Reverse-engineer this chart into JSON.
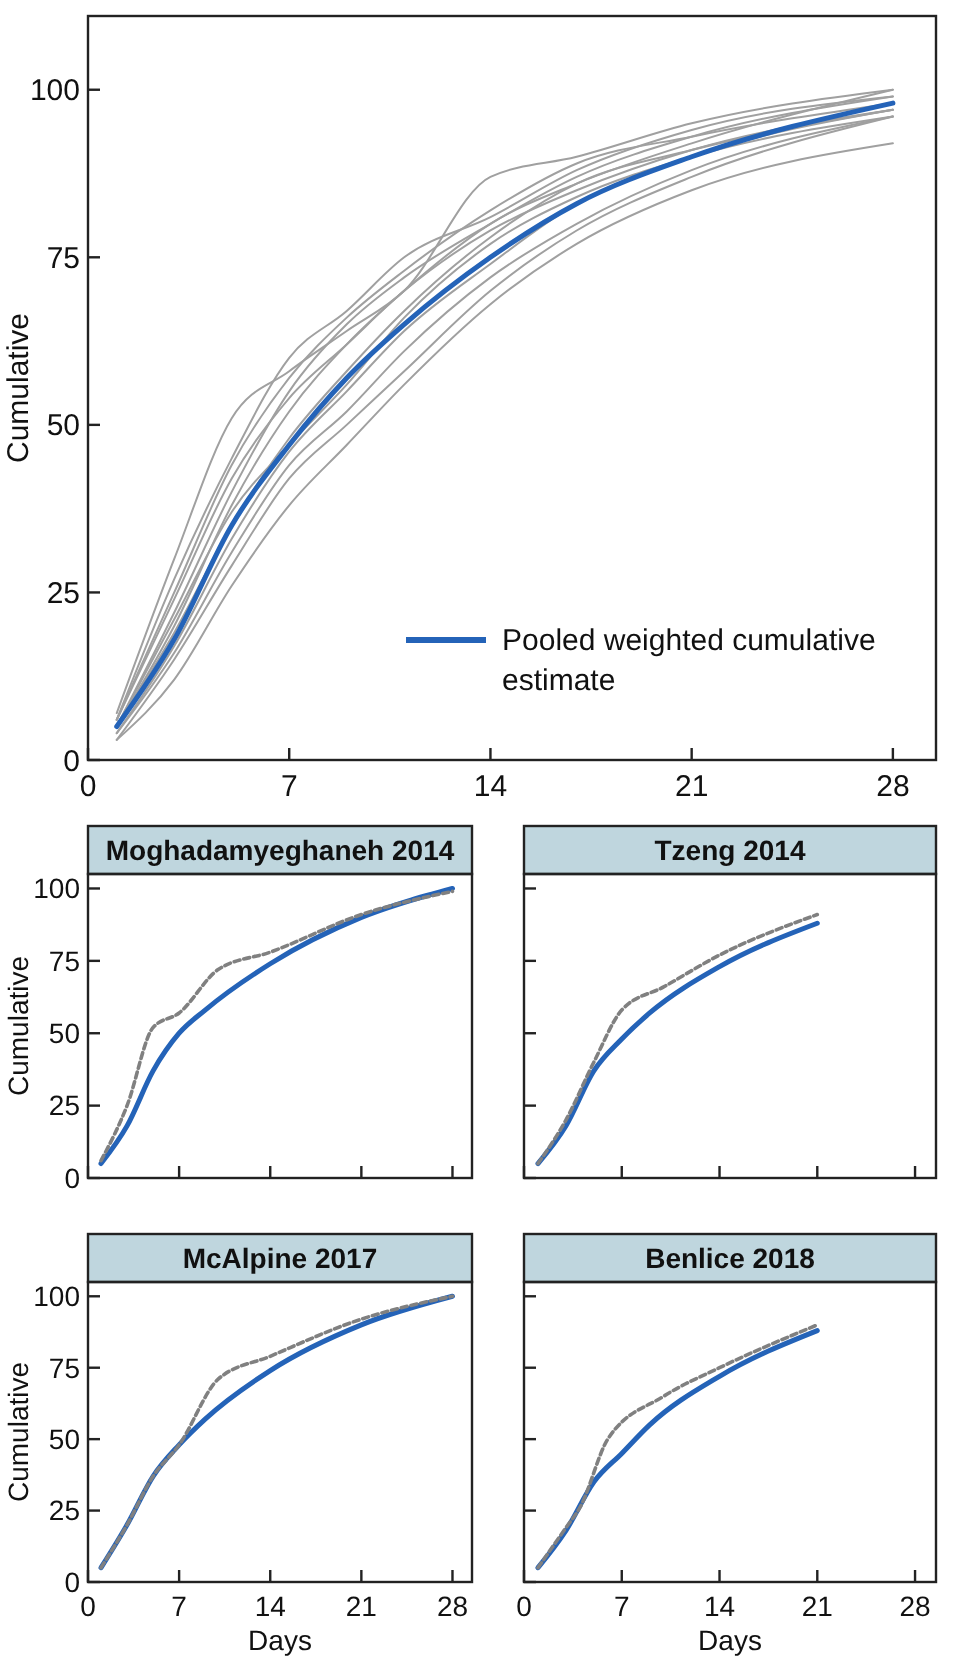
{
  "chart_data": [
    {
      "type": "line",
      "ylabel": "Cumulative",
      "xlim": [
        0,
        29.5
      ],
      "ylim": [
        0,
        111
      ],
      "xticks": [
        0,
        7,
        14,
        21,
        28
      ],
      "yticks": [
        0,
        25,
        50,
        75,
        100
      ],
      "legend": "bottom right",
      "x": [
        1,
        3,
        5,
        7,
        9,
        11,
        14,
        17,
        21,
        28
      ],
      "series": [
        {
          "color": "#a0a0a0",
          "values": [
            7,
            30,
            51,
            58,
            64,
            70,
            87,
            90,
            95,
            100
          ]
        },
        {
          "color": "#a0a0a0",
          "values": [
            6,
            27,
            45,
            60,
            67,
            75,
            81,
            88,
            94,
            99
          ]
        },
        {
          "color": "#a0a0a0",
          "values": [
            6,
            25,
            44,
            57,
            66,
            73,
            82,
            89,
            93,
            98
          ]
        },
        {
          "color": "#a0a0a0",
          "values": [
            5,
            22,
            40,
            55,
            65,
            72,
            80,
            87,
            93,
            99
          ]
        },
        {
          "color": "#a0a0a0",
          "values": [
            5,
            20,
            38,
            52,
            62,
            70,
            80,
            86,
            92,
            100
          ]
        },
        {
          "color": "#a0a0a0",
          "values": [
            5,
            19,
            35,
            48,
            58,
            67,
            78,
            86,
            91,
            97
          ]
        },
        {
          "color": "#a0a0a0",
          "values": [
            4,
            17,
            33,
            46,
            55,
            64,
            74,
            83,
            90,
            97
          ]
        },
        {
          "color": "#a0a0a0",
          "values": [
            4,
            16,
            31,
            44,
            52,
            61,
            72,
            80,
            88,
            96
          ]
        },
        {
          "color": "#a0a0a0",
          "values": [
            3,
            15,
            29,
            42,
            50,
            58,
            70,
            79,
            87,
            96
          ]
        },
        {
          "color": "#a0a0a0",
          "values": [
            3,
            12,
            26,
            38,
            47,
            56,
            68,
            77,
            85,
            92
          ]
        },
        {
          "color": "#a0a0a0",
          "values": [
            6,
            24,
            42,
            54,
            62,
            70,
            79,
            85,
            91,
            97
          ]
        },
        {
          "color": "#a0a0a0",
          "values": [
            5,
            21,
            37,
            47,
            56,
            66,
            77,
            84,
            90,
            96
          ]
        },
        {
          "name": "Pooled weighted cumulative estimate",
          "color": "#2463b8",
          "values": [
            5,
            18,
            35,
            47,
            57,
            65,
            75,
            83,
            90,
            98
          ]
        }
      ]
    },
    {
      "type": "line",
      "title": "Moghadamyeghaneh 2014",
      "ylabel": "Cumulative",
      "xlim": [
        0,
        29.5
      ],
      "ylim": [
        0,
        105
      ],
      "xticks": [
        {
          "value": 0,
          "label": null
        },
        {
          "value": 7,
          "label": null
        },
        {
          "value": 14,
          "label": null
        },
        {
          "value": 21,
          "label": null
        },
        {
          "value": 28,
          "label": null
        }
      ],
      "yticks": [
        0,
        25,
        50,
        75,
        100
      ],
      "tick_labels": "y",
      "series": [
        {
          "color": "#2463b8",
          "line_style": "solid",
          "x": [
            1,
            3,
            5,
            7,
            9,
            14,
            21,
            28
          ],
          "values": [
            5,
            18,
            37,
            50,
            58,
            74,
            90,
            100
          ]
        },
        {
          "color": "#808080",
          "line_style": "dashed",
          "x": [
            1,
            3,
            5,
            7,
            10,
            14,
            21,
            28
          ],
          "values": [
            6,
            25,
            52,
            57,
            72,
            78,
            91,
            99
          ]
        }
      ]
    },
    {
      "type": "line",
      "title": "Tzeng 2014",
      "xlim": [
        0,
        29.5
      ],
      "ylim": [
        0,
        105
      ],
      "xticks": [
        {
          "value": 0,
          "label": null
        },
        {
          "value": 7,
          "label": null
        },
        {
          "value": 14,
          "label": null
        },
        {
          "value": 21,
          "label": null
        },
        {
          "value": 28,
          "label": null
        }
      ],
      "yticks": [
        {
          "value": 0,
          "label": null
        },
        {
          "value": 25,
          "label": null
        },
        {
          "value": 50,
          "label": null
        },
        {
          "value": 75,
          "label": null
        },
        {
          "value": 100,
          "label": null
        }
      ],
      "tick_labels": false,
      "series": [
        {
          "color": "#2463b8",
          "line_style": "solid",
          "x": [
            1,
            3,
            5,
            7,
            9,
            14,
            21
          ],
          "values": [
            5,
            18,
            37,
            48,
            57,
            73,
            88
          ]
        },
        {
          "color": "#808080",
          "line_style": "dashed",
          "x": [
            1,
            3,
            5,
            7,
            10,
            14,
            21
          ],
          "values": [
            5,
            20,
            40,
            58,
            66,
            77,
            91
          ]
        }
      ]
    },
    {
      "type": "line",
      "title": "McAlpine 2017",
      "xlabel": "Days",
      "ylabel": "Cumulative",
      "xlim": [
        0,
        29.5
      ],
      "ylim": [
        0,
        105
      ],
      "xticks": [
        0,
        7,
        14,
        21,
        28
      ],
      "yticks": [
        0,
        25,
        50,
        75,
        100
      ],
      "series": [
        {
          "color": "#2463b8",
          "line_style": "solid",
          "x": [
            1,
            3,
            5,
            7,
            9,
            14,
            21,
            28
          ],
          "values": [
            5,
            20,
            37,
            48,
            57,
            74,
            90,
            100
          ]
        },
        {
          "color": "#808080",
          "line_style": "dashed",
          "x": [
            1,
            3,
            5,
            7,
            10,
            14,
            21,
            28
          ],
          "values": [
            5,
            20,
            37,
            48,
            71,
            79,
            92,
            100
          ]
        }
      ]
    },
    {
      "type": "line",
      "title": "Benlice 2018",
      "xlabel": "Days",
      "xlim": [
        0,
        29.5
      ],
      "ylim": [
        0,
        105
      ],
      "xticks": [
        0,
        7,
        14,
        21,
        28
      ],
      "yticks": [
        {
          "value": 0,
          "label": null
        },
        {
          "value": 25,
          "label": null
        },
        {
          "value": 50,
          "label": null
        },
        {
          "value": 75,
          "label": null
        },
        {
          "value": 100,
          "label": null
        }
      ],
      "tick_labels": "x",
      "series": [
        {
          "color": "#2463b8",
          "line_style": "solid",
          "x": [
            1,
            3,
            5,
            7,
            9,
            14,
            21
          ],
          "values": [
            5,
            18,
            35,
            45,
            55,
            72,
            88
          ]
        },
        {
          "color": "#808080",
          "line_style": "dashed",
          "x": [
            1,
            3,
            4,
            6,
            10,
            14,
            21
          ],
          "values": [
            5,
            19,
            26,
            50,
            65,
            75,
            90
          ]
        }
      ]
    }
  ]
}
